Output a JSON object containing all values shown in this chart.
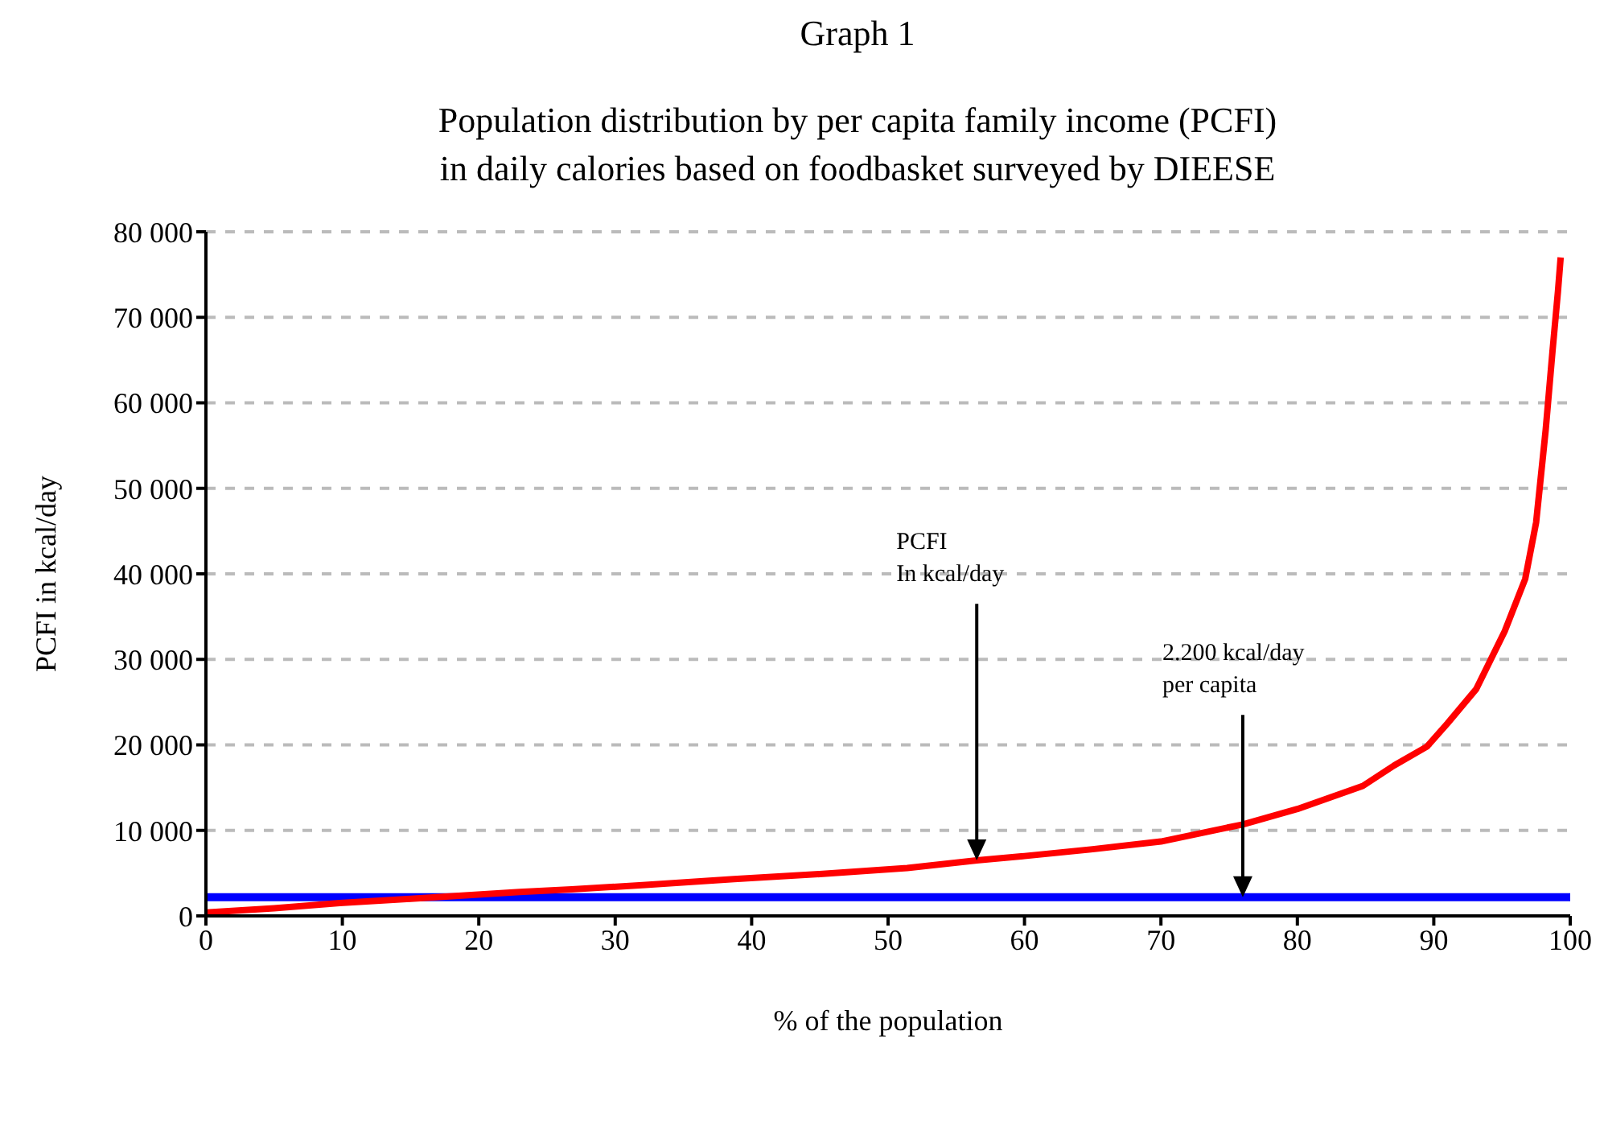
{
  "chart_data": {
    "type": "line",
    "title": "Graph 1",
    "subtitle": "Population distribution by per capita family income (PCFI)\nin daily calories based on foodbasket surveyed by DIEESE",
    "xlabel": "% of the population",
    "ylabel": "PCFI in kcal/day",
    "series": [
      {
        "color": "#ff0000",
        "x": [
          0,
          5,
          9.8,
          15,
          19,
          23,
          26.8,
          32,
          38.7,
          45,
          51.4,
          56.5,
          60,
          65,
          70,
          76,
          80,
          84.8,
          87.1,
          89.5,
          91,
          93.1,
          95.2,
          96.7,
          97.5,
          98.2,
          98.7,
          99.1,
          99.3
        ],
        "values": [
          400,
          900,
          1500,
          2000,
          2400,
          2800,
          3100,
          3600,
          4300,
          4900,
          5600,
          6500,
          7000,
          7800,
          8700,
          10700,
          12500,
          15200,
          17600,
          19800,
          22500,
          26500,
          33300,
          39400,
          46000,
          56800,
          66000,
          73000,
          77000
        ]
      }
    ],
    "xlim": [
      0,
      100
    ],
    "xticks": [
      0,
      10,
      20,
      30,
      40,
      50,
      60,
      70,
      80,
      90,
      100
    ],
    "ylim": [
      0,
      80000
    ],
    "yticks": [
      {
        "value": 0,
        "label": "0"
      },
      {
        "value": 10000,
        "label": "10 000"
      },
      {
        "value": 20000,
        "label": "20 000"
      },
      {
        "value": 30000,
        "label": "30 000"
      },
      {
        "value": 40000,
        "label": "40 000"
      },
      {
        "value": 50000,
        "label": "50 000"
      },
      {
        "value": 60000,
        "label": "60 000"
      },
      {
        "value": 70000,
        "label": "70 000"
      },
      {
        "value": 80000,
        "label": "80 000"
      }
    ],
    "grid": "y",
    "marker": "none",
    "line_style": "solid",
    "ref_lines": [
      {
        "axis": "y",
        "value": 2200,
        "color": "#0000ff"
      }
    ],
    "annotations": [
      "PCFI\nIn kcal/day",
      "2.200 kcal/day\nper capita"
    ]
  }
}
